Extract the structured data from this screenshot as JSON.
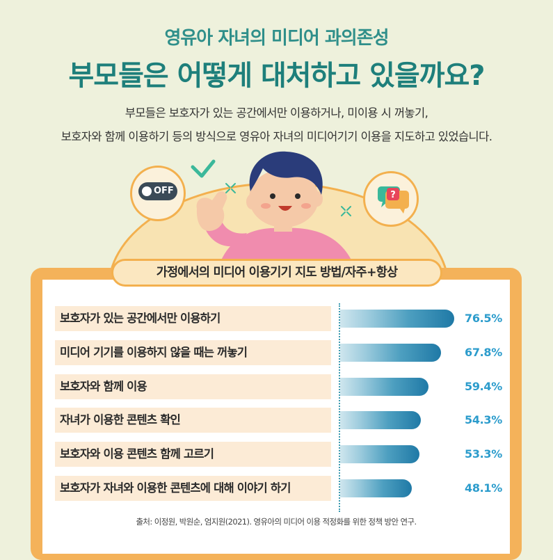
{
  "header": {
    "subtitle": "영유아 자녀의 미디어 과의존성",
    "title": "부모들은 어떻게 대처하고 있을까요?",
    "desc_line1": "부모들은 보호자가 있는 공간에서만 이용하거나, 미이용 시 꺼놓기,",
    "desc_line2": "보호자와 함께 이용하기 등의 방식으로 영유아 자녀의 미디어기기 이용을 지도하고 있었습니다."
  },
  "illustration": {
    "off_label": "OFF",
    "question_mark": "?",
    "icons": [
      "off-toggle-icon",
      "check-icon",
      "speech-bubble-question-icon",
      "sparkle-icon"
    ]
  },
  "chart_data": {
    "type": "bar",
    "title": "가정에서의 미디어 이용기기 지도 방법/자주+항상",
    "categories": [
      "보호자가 있는 공간에서만 이용하기",
      "미디어 기기를 이용하지 않을 때는 꺼놓기",
      "보호자와 함께 이용",
      "자녀가 이용한 콘텐츠 확인",
      "보호자와 이용 콘텐츠 함께 고르기",
      "보호자가 자녀와 이용한 콘텐츠에 대해 이야기 하기"
    ],
    "values": [
      76.5,
      67.8,
      59.4,
      54.3,
      53.3,
      48.1
    ],
    "value_labels": [
      "76.5%",
      "67.8%",
      "59.4%",
      "54.3%",
      "53.3%",
      "48.1%"
    ],
    "xlim": [
      0,
      100
    ],
    "orientation": "horizontal",
    "grid": false,
    "colors": {
      "bar_start": "#cfe6ee",
      "bar_end": "#1f79a6",
      "value_text": "#2c9ccc",
      "label_bg": "#fcebd6"
    }
  },
  "source": "출처: 이정원, 박원순, 엄지원(2021). 영유아의 미디어 이용 적정화를 위한 정책 방안 연구."
}
